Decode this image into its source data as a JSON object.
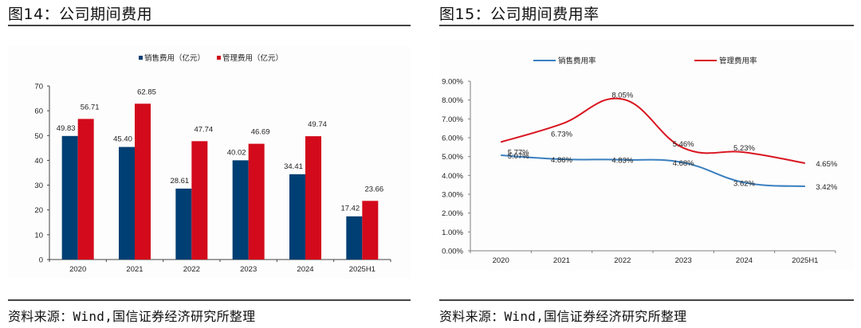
{
  "panels": [
    {
      "title": "图14：公司期间费用",
      "source": "资料来源：Wind,国信证券经济研究所整理"
    },
    {
      "title": "图15：公司期间费用率",
      "source": "资料来源：Wind,国信证券经济研究所整理"
    }
  ],
  "colors": {
    "sales": "#003F73",
    "admin": "#D20A1B",
    "sales_line": "#3A7FC0",
    "admin_line": "#D9141F",
    "axis": "#808080"
  },
  "chart_data": [
    {
      "type": "bar",
      "title": "图14：公司期间费用",
      "categories": [
        "2020",
        "2021",
        "2022",
        "2023",
        "2024",
        "2025H1"
      ],
      "series": [
        {
          "name": "销售费用（亿元）",
          "values": [
            49.83,
            45.4,
            28.61,
            40.02,
            34.41,
            17.42
          ],
          "labels": [
            "49.83",
            "45.40",
            "28.61",
            "40.02",
            "34.41",
            "17.42"
          ]
        },
        {
          "name": "管理费用（亿元）",
          "values": [
            56.71,
            62.85,
            47.74,
            46.69,
            49.74,
            23.66
          ],
          "labels": [
            "56.71",
            "62.85",
            "47.74",
            "46.69",
            "49.74",
            "23.66"
          ]
        }
      ],
      "xlabel": "",
      "ylabel": "",
      "ylim": [
        0,
        70
      ],
      "yticks": [
        "0",
        "10",
        "20",
        "30",
        "40",
        "50",
        "60",
        "70"
      ],
      "legend": "top-center",
      "grid": false
    },
    {
      "type": "line",
      "title": "图15：公司期间费用率",
      "categories": [
        "2020",
        "2021",
        "2022",
        "2023",
        "2024",
        "2025H1"
      ],
      "series": [
        {
          "name": "销售费用率",
          "values": [
            5.07,
            4.86,
            4.83,
            4.68,
            3.62,
            3.42
          ],
          "labels": [
            "5.07%",
            "4.86%",
            "4.83%",
            "4.68%",
            "3.62%",
            "3.42%"
          ]
        },
        {
          "name": "管理费用率",
          "values": [
            5.77,
            6.73,
            8.05,
            5.46,
            5.23,
            4.65
          ],
          "labels": [
            "5.77%",
            "6.73%",
            "8.05%",
            "5.46%",
            "5.23%",
            "4.65%"
          ]
        }
      ],
      "xlabel": "",
      "ylabel": "",
      "ylim": [
        0,
        9
      ],
      "yticks": [
        "0.00%",
        "1.00%",
        "2.00%",
        "3.00%",
        "4.00%",
        "5.00%",
        "6.00%",
        "7.00%",
        "8.00%",
        "9.00%"
      ],
      "legend": "top-center",
      "smooth": true,
      "grid": false
    }
  ]
}
